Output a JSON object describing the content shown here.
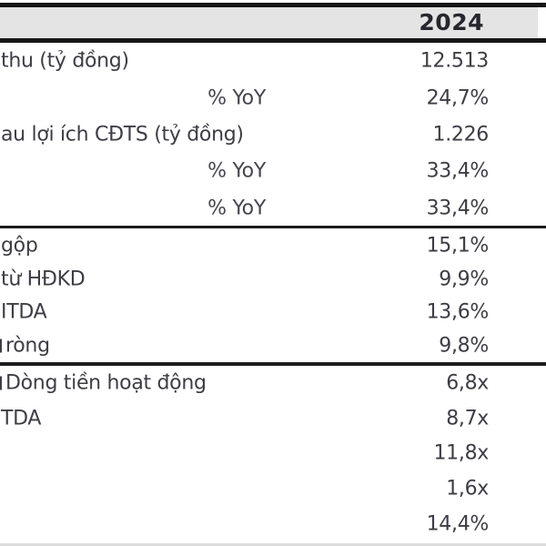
{
  "header": {
    "year": "2024"
  },
  "colors": {
    "header_bg": "#e4e4e4",
    "rule": "#161616",
    "text": "#3d3d46",
    "header_text": "#26262e"
  },
  "sections": [
    {
      "rows": [
        {
          "label": "thu (tỷ đồng)",
          "value": "12.513"
        },
        {
          "label": "% YoY",
          "value": "24,7%"
        },
        {
          "label": "au lợi ích CĐTS (tỷ đồng)",
          "value": "1.226"
        },
        {
          "label": "% YoY",
          "value": "33,4%"
        },
        {
          "label": "% YoY",
          "value": "33,4%"
        }
      ]
    },
    {
      "rows": [
        {
          "label": "gộp",
          "value": "15,1%"
        },
        {
          "label": "từ HĐKD",
          "value": "9,9%"
        },
        {
          "label": "ITDA",
          "value": "13,6%"
        },
        {
          "label": "ròng",
          "value": "9,8%"
        }
      ]
    },
    {
      "rows": [
        {
          "label": "Dòng tiền hoạt động",
          "value": "6,8x"
        },
        {
          "label": "TDA",
          "value": "8,7x"
        },
        {
          "label": "",
          "value": "11,8x"
        },
        {
          "label": "",
          "value": "1,6x"
        },
        {
          "label": "",
          "value": "14,4%"
        }
      ]
    }
  ]
}
